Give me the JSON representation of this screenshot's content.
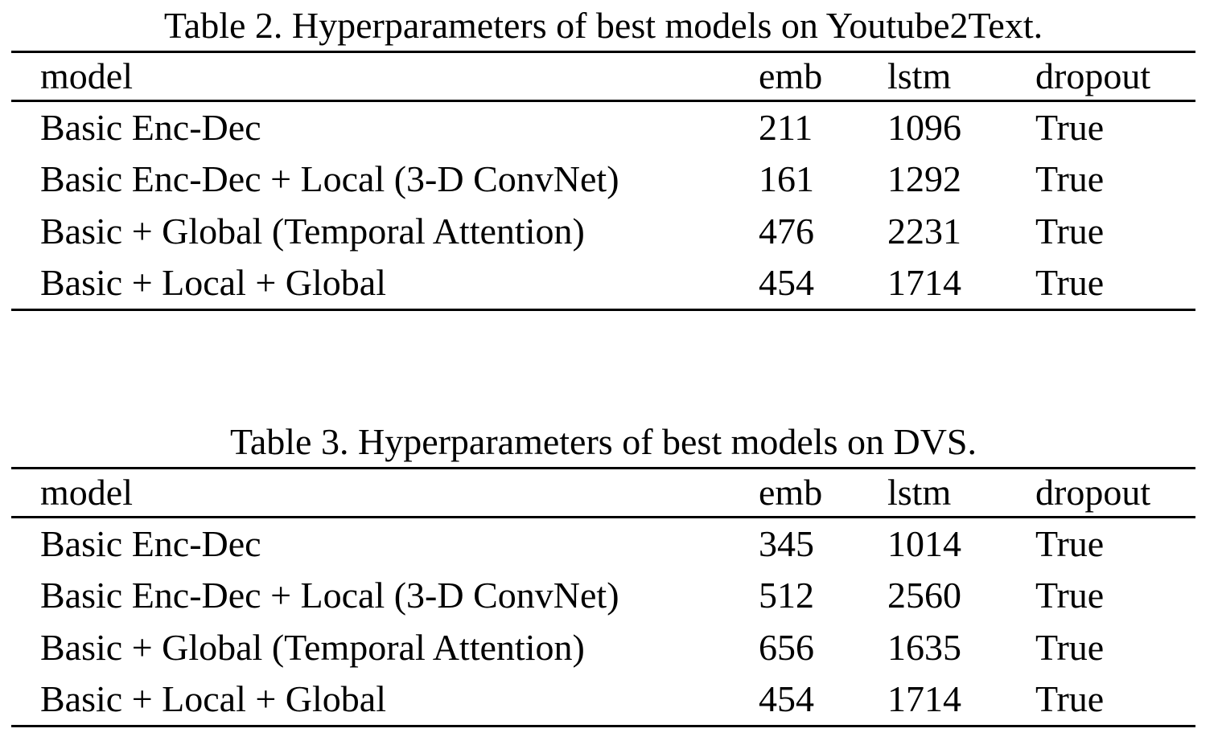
{
  "page": {
    "background_color": "#ffffff",
    "text_color": "#000000",
    "rule_color": "#000000"
  },
  "tables": [
    {
      "caption": "Table 2. Hyperparameters of best models on Youtube2Text.",
      "columns": [
        "model",
        "emb",
        "lstm",
        "dropout"
      ],
      "rows": [
        {
          "model": "Basic Enc-Dec",
          "emb": "211",
          "lstm": "1096",
          "dropout": "True"
        },
        {
          "model": "Basic Enc-Dec + Local (3-D ConvNet)",
          "emb": "161",
          "lstm": "1292",
          "dropout": "True"
        },
        {
          "model": "Basic + Global (Temporal Attention)",
          "emb": "476",
          "lstm": "2231",
          "dropout": "True"
        },
        {
          "model": "Basic + Local + Global",
          "emb": "454",
          "lstm": "1714",
          "dropout": "True"
        }
      ]
    },
    {
      "caption": "Table 3. Hyperparameters of best models on DVS.",
      "columns": [
        "model",
        "emb",
        "lstm",
        "dropout"
      ],
      "rows": [
        {
          "model": "Basic Enc-Dec",
          "emb": "345",
          "lstm": "1014",
          "dropout": "True"
        },
        {
          "model": "Basic Enc-Dec + Local (3-D ConvNet)",
          "emb": "512",
          "lstm": "2560",
          "dropout": "True"
        },
        {
          "model": "Basic + Global (Temporal Attention)",
          "emb": "656",
          "lstm": "1635",
          "dropout": "True"
        },
        {
          "model": "Basic + Local + Global",
          "emb": "454",
          "lstm": "1714",
          "dropout": "True"
        }
      ]
    }
  ]
}
